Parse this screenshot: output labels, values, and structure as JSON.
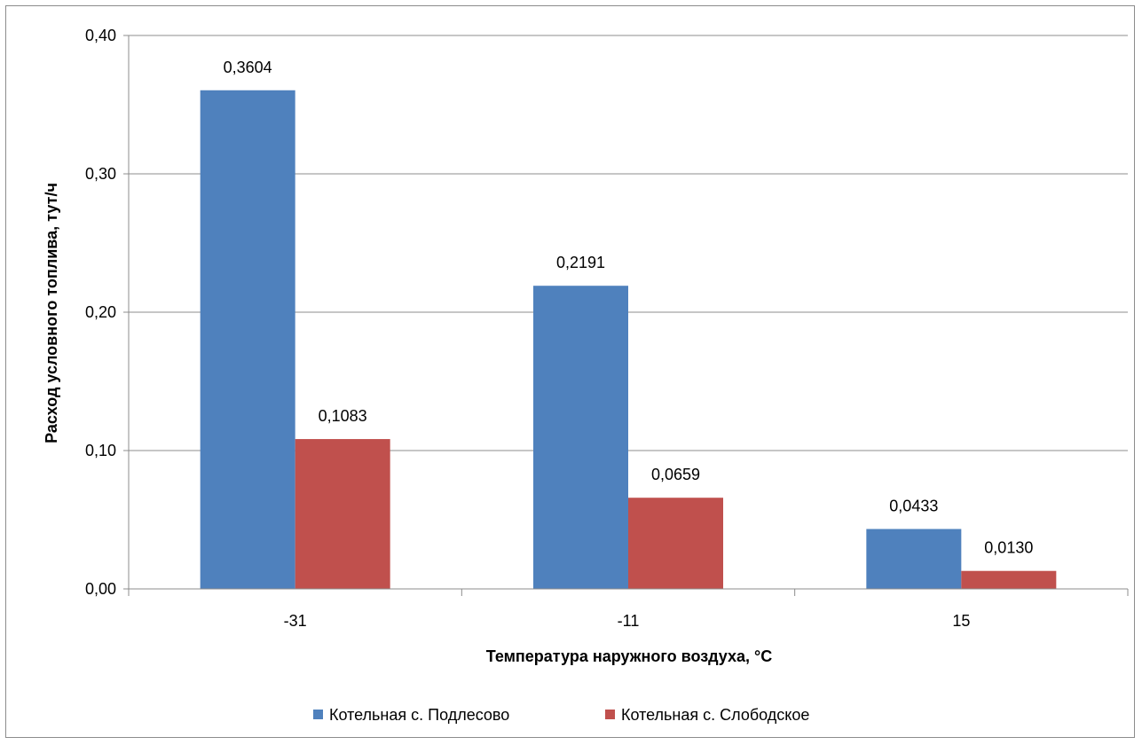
{
  "chart_data": {
    "type": "bar",
    "title": "",
    "xlabel": "Температура наружного воздуха, °С",
    "ylabel": "Расход условного топлива, тут/ч",
    "categories": [
      "-31",
      "-11",
      "15"
    ],
    "series": [
      {
        "name": "Котельная с. Подлесово",
        "values": [
          0.3604,
          0.2191,
          0.0433
        ],
        "labels": [
          "0,3604",
          "0,2191",
          "0,0433"
        ],
        "color": "#4f81bd"
      },
      {
        "name": "Котельная с. Слободское",
        "values": [
          0.1083,
          0.0659,
          0.013
        ],
        "labels": [
          "0,1083",
          "0,0659",
          "0,0130"
        ],
        "color": "#c0504d"
      }
    ],
    "ylim": [
      0,
      0.4
    ],
    "yticks": [
      0,
      0.1,
      0.2,
      0.3,
      0.4
    ],
    "ytick_labels": [
      "0,00",
      "0,10",
      "0,20",
      "0,30",
      "0,40"
    ],
    "grid": true,
    "legend": "bottom"
  }
}
